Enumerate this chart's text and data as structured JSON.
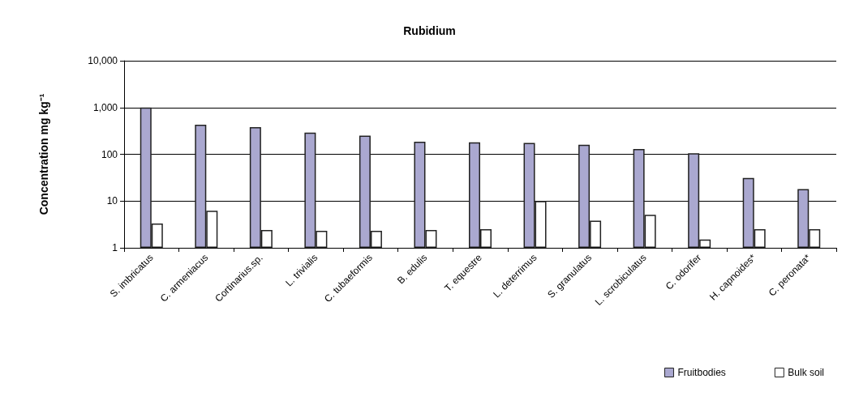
{
  "chart_data": {
    "type": "bar",
    "title": "Rubidium",
    "ylabel": "Concentration mg kg⁻¹",
    "categories": [
      "S. imbricatus",
      "C. armeniacus",
      "Cortinarius.sp.",
      "L. trivialis",
      "C. tubaeformis",
      "B. edulis",
      "T. equestre",
      "L. deterrimus",
      "S. granulatus",
      "L. scrobiculatus",
      "C. odorifer",
      "H. capnoides*",
      "C. peronata*"
    ],
    "series": [
      {
        "name": "Fruitbodies",
        "color": "#aaa8d0",
        "values": [
          1000,
          430,
          380,
          290,
          250,
          185,
          180,
          175,
          160,
          130,
          105,
          31,
          18
        ]
      },
      {
        "name": "Bulk soil",
        "color": "#ffffff",
        "values": [
          3.3,
          6.2,
          2.4,
          2.3,
          2.3,
          2.4,
          2.5,
          10,
          3.8,
          5.1,
          1.5,
          2.5,
          2.5
        ]
      }
    ],
    "log": true,
    "ylim": [
      1,
      10000
    ],
    "yticks": [
      1,
      10,
      {
        "value": 100,
        "label": "100"
      },
      {
        "value": 1000,
        "label": "1,000"
      },
      {
        "value": 10000,
        "label": "10,000"
      }
    ],
    "grid": "y",
    "legend": "bottom right"
  }
}
